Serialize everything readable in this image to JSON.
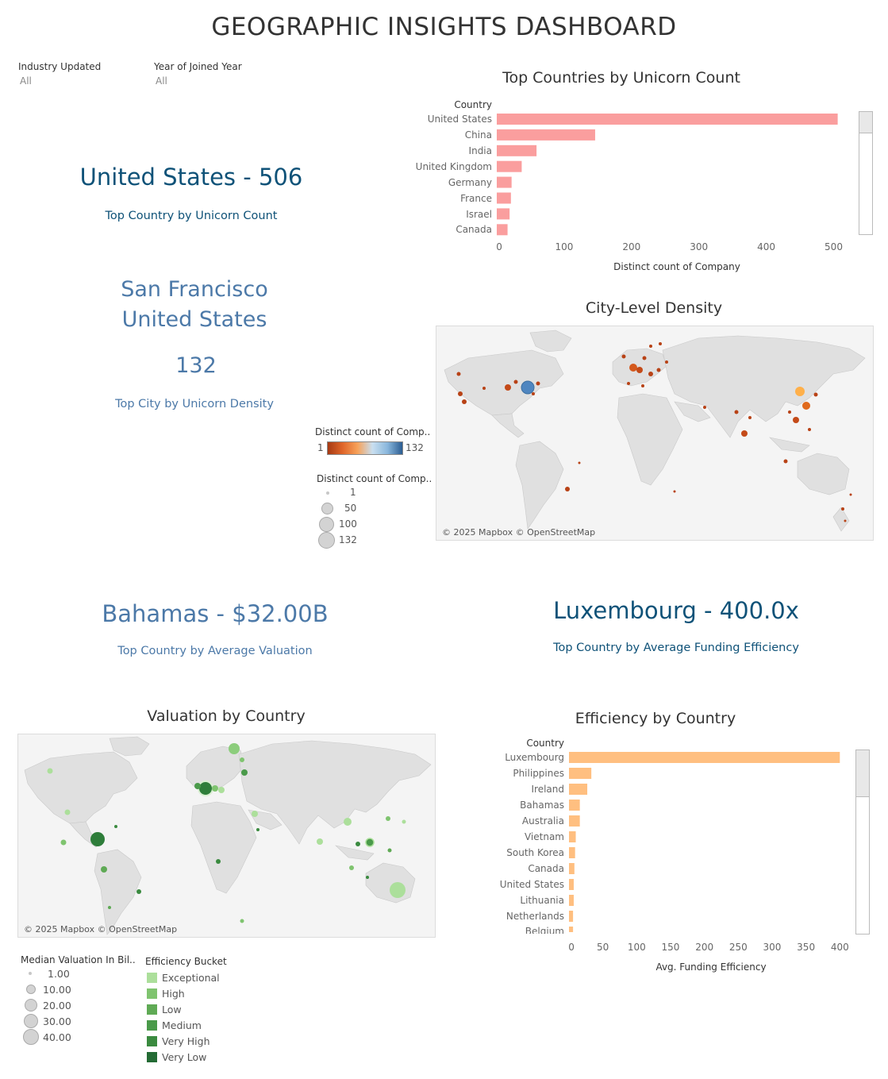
{
  "dashboard": {
    "title": "GEOGRAPHIC INSIGHTS DASHBOARD"
  },
  "filters": [
    {
      "label": "Industry Updated",
      "value": "All"
    },
    {
      "label": "Year of Joined Year",
      "value": "All"
    }
  ],
  "kpis": {
    "top_country": {
      "value": "United States - 506",
      "caption": "Top Country by Unicorn Count"
    },
    "top_city": {
      "city": "San Francisco",
      "country": "United States",
      "value": "132",
      "caption": "Top City by Unicorn Density"
    },
    "top_valuation": {
      "value": "Bahamas - $32.00B",
      "caption": "Top Country by Average Valuation"
    },
    "top_efficiency": {
      "value": "Luxembourg - 400.0x",
      "caption": "Top Country by Average Funding Efficiency"
    }
  },
  "chart_data": [
    {
      "id": "country-count",
      "type": "bar",
      "orientation": "horizontal",
      "title": "Top Countries by Unicorn Count",
      "category_header": "Country",
      "categories": [
        "United States",
        "China",
        "India",
        "United Kingdom",
        "Germany",
        "France",
        "Israel",
        "Canada"
      ],
      "values": [
        506,
        146,
        59,
        37,
        22,
        21,
        19,
        16
      ],
      "xlabel": "Distinct count of Company",
      "xlim": [
        0,
        510
      ],
      "xticks": [
        0,
        100,
        200,
        300,
        400,
        500
      ],
      "color": "#fa9e9e"
    },
    {
      "id": "efficiency",
      "type": "bar",
      "orientation": "horizontal",
      "title": "Efficiency by Country",
      "category_header": "Country",
      "categories": [
        "Luxembourg",
        "Philippines",
        "Ireland",
        "Bahamas",
        "Australia",
        "Vietnam",
        "South Korea",
        "Canada",
        "United States",
        "Lithuania",
        "Netherlands",
        "Belgium"
      ],
      "values": [
        400,
        33,
        27,
        16,
        16,
        10,
        9,
        8,
        7,
        7,
        6,
        6
      ],
      "xlabel": "Avg. Funding Efficiency",
      "xlim": [
        0,
        402
      ],
      "xticks": [
        0,
        50,
        100,
        150,
        200,
        250,
        300,
        350,
        400
      ],
      "color": "#ffbf80"
    }
  ],
  "city_map": {
    "title": "City-Level Density",
    "credit": "© 2025 Mapbox © OpenStreetMap",
    "color_legend": {
      "title": "Distinct count of Comp..",
      "min": "1",
      "max": "132"
    },
    "size_legend": {
      "title": "Distinct count of Comp..",
      "values": [
        "1",
        "50",
        "100",
        "132"
      ]
    }
  },
  "valuation_map": {
    "title": "Valuation by Country",
    "credit": "© 2025 Mapbox © OpenStreetMap",
    "size_legend": {
      "title": "Median Valuation In Bil..",
      "values": [
        "1.00",
        "10.00",
        "20.00",
        "30.00",
        "40.00"
      ]
    },
    "color_legend": {
      "title": "Efficiency Bucket",
      "items": [
        {
          "label": "Exceptional",
          "color": "#acdf9b"
        },
        {
          "label": "High",
          "color": "#7fc46f"
        },
        {
          "label": "Low",
          "color": "#5faa55"
        },
        {
          "label": "Medium",
          "color": "#4a9a4a"
        },
        {
          "label": "Very High",
          "color": "#3a8a3f"
        },
        {
          "label": "Very Low",
          "color": "#246b34"
        }
      ]
    }
  }
}
